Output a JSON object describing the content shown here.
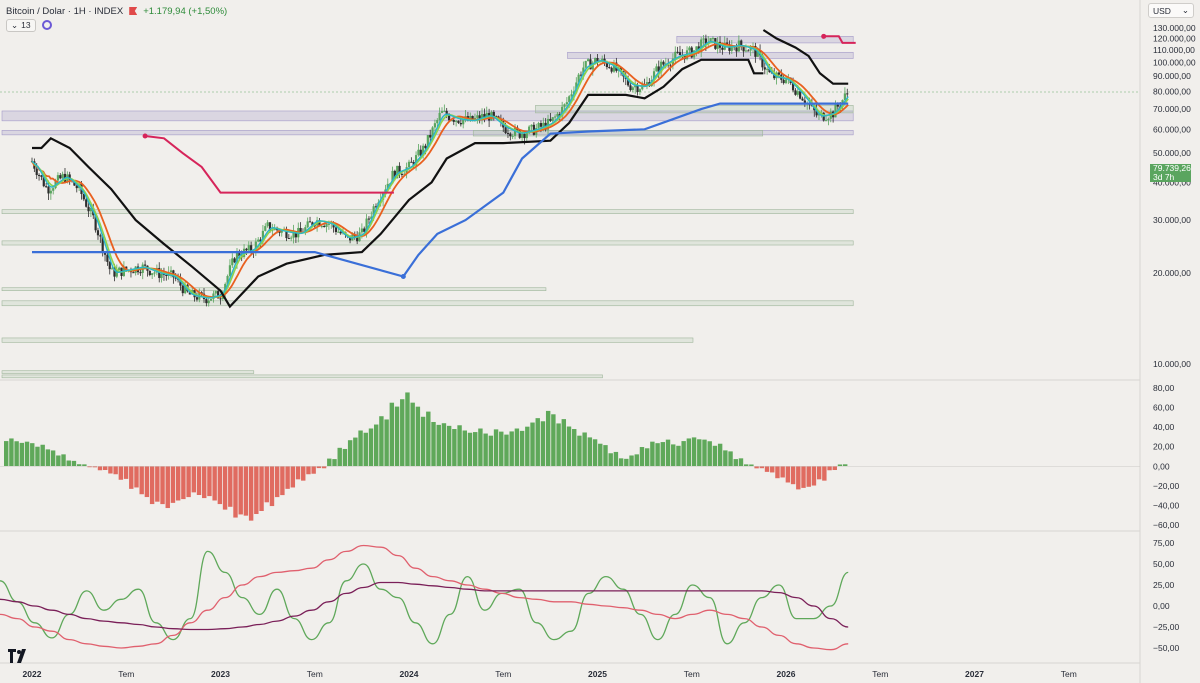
{
  "header": {
    "title": "Bitcoin / Dolar · 1H · INDEX",
    "change": "+1.179,94 (+1,50%)",
    "indicator_count": "13"
  },
  "currency": {
    "label": "USD"
  },
  "last_price": {
    "value": "79.739,26",
    "countdown": "3d 7h"
  },
  "colors": {
    "background": "#f1efec",
    "candle_up": "#5aa55f",
    "candle_down": "#2e2e2e",
    "supertrend": "#111111",
    "ema_fast": "#2bb5c9",
    "ema_green": "#8fd34a",
    "ema_slow": "#e9601f",
    "support_line": "#3a6fd8",
    "resistance_line": "#d6245a",
    "histogram_pos": "#5fa85a",
    "histogram_neg": "#e06b60",
    "osc_green": "#5fa85a",
    "osc_red": "#e0606e",
    "osc_purple": "#7a1f58"
  },
  "icons": [
    "flag-icon",
    "chevron-down-icon",
    "settings-icon",
    "tradingview-logo"
  ],
  "chart_data": [
    {
      "type": "candlestick",
      "title": "Bitcoin / Dolar · 1H · INDEX",
      "yscale": "log",
      "ylim": [
        7000,
        140000
      ],
      "yticks": [
        130000,
        120000,
        110000,
        100000,
        90000,
        80000,
        70000,
        60000,
        50000,
        40000,
        30000,
        20000,
        10000
      ],
      "ytick_labels": [
        "130.000,00",
        "120.000,00",
        "110.000,00",
        "100.000,00",
        "90.000,00",
        "80.000,00",
        "70.000,00",
        "60.000,00",
        "50.000,00",
        "40.000,00",
        "30.000,00",
        "20.000,00",
        "10.000,00"
      ],
      "last_value": 79739.26,
      "close_path": [
        [
          2022.0,
          47000
        ],
        [
          2022.08,
          38000
        ],
        [
          2022.17,
          42000
        ],
        [
          2022.25,
          38000
        ],
        [
          2022.33,
          30000
        ],
        [
          2022.42,
          20000
        ],
        [
          2022.5,
          20500
        ],
        [
          2022.58,
          21000
        ],
        [
          2022.67,
          20000
        ],
        [
          2022.75,
          19500
        ],
        [
          2022.83,
          17000
        ],
        [
          2022.92,
          16500
        ],
        [
          2023.0,
          17000
        ],
        [
          2023.08,
          23000
        ],
        [
          2023.17,
          24000
        ],
        [
          2023.25,
          28500
        ],
        [
          2023.33,
          27500
        ],
        [
          2023.42,
          27000
        ],
        [
          2023.5,
          30000
        ],
        [
          2023.58,
          29200
        ],
        [
          2023.67,
          26000
        ],
        [
          2023.75,
          27000
        ],
        [
          2023.83,
          35000
        ],
        [
          2023.92,
          43000
        ],
        [
          2024.0,
          45000
        ],
        [
          2024.08,
          52000
        ],
        [
          2024.17,
          68000
        ],
        [
          2024.25,
          65000
        ],
        [
          2024.33,
          64000
        ],
        [
          2024.42,
          67000
        ],
        [
          2024.5,
          61000
        ],
        [
          2024.58,
          58000
        ],
        [
          2024.67,
          60000
        ],
        [
          2024.75,
          63000
        ],
        [
          2024.83,
          72000
        ],
        [
          2024.92,
          96000
        ],
        [
          2025.0,
          102000
        ],
        [
          2025.08,
          97000
        ],
        [
          2025.17,
          84000
        ],
        [
          2025.25,
          83000
        ],
        [
          2025.33,
          97000
        ],
        [
          2025.42,
          105000
        ],
        [
          2025.5,
          108000
        ],
        [
          2025.58,
          118000
        ],
        [
          2025.67,
          112000
        ],
        [
          2025.75,
          114000
        ],
        [
          2025.83,
          110000
        ],
        [
          2025.92,
          90000
        ],
        [
          2026.0,
          88000
        ],
        [
          2026.08,
          78000
        ],
        [
          2026.17,
          66000
        ],
        [
          2026.25,
          68000
        ],
        [
          2026.33,
          79739
        ]
      ],
      "reference_lines": [
        {
          "name": "support",
          "points": [
            [
              2022.0,
              23500
            ],
            [
              2022.6,
              23500
            ],
            [
              2023.5,
              23500
            ]
          ]
        },
        {
          "name": "resistance",
          "points": [
            [
              2022.6,
              57000
            ],
            [
              2023.0,
              37000
            ],
            [
              2023.92,
              37000
            ]
          ]
        }
      ]
    },
    {
      "type": "bar",
      "ylim": [
        -60,
        80
      ],
      "yticks": [
        80,
        60,
        40,
        20,
        0,
        -20,
        -40,
        -60
      ],
      "ytick_labels": [
        "80,00",
        "60,00",
        "40,00",
        "20,00",
        "0,00",
        "−20,00",
        "−40,00",
        "−60,00"
      ],
      "series": [
        {
          "values": [
            28,
            26,
            24,
            21,
            17,
            12,
            6,
            2,
            -1,
            -4,
            -8,
            -14,
            -22,
            -30,
            -38,
            -42,
            -38,
            -32,
            -28,
            -32,
            -38,
            -45,
            -50,
            -53,
            -48,
            -40,
            -32,
            -22,
            -14,
            -8,
            -2,
            8,
            18,
            28,
            36,
            42,
            52,
            62,
            72,
            64,
            55,
            46,
            42,
            40,
            36,
            38,
            34,
            36,
            34,
            38,
            44,
            50,
            54,
            46,
            40,
            34,
            30,
            22,
            14,
            8,
            12,
            20,
            24,
            26,
            22,
            28,
            30,
            26,
            22,
            16,
            8,
            2,
            -2,
            -6,
            -12,
            -18,
            -24,
            -20,
            -14,
            -4,
            2
          ]
        }
      ],
      "x_range": [
        2022.0,
        2026.33
      ]
    },
    {
      "type": "line",
      "ylim": [
        -55,
        78
      ],
      "yticks": [
        75,
        50,
        25,
        0,
        -25,
        -50
      ],
      "ytick_labels": [
        "75,00",
        "50,00",
        "25,00",
        "0,00",
        "−25,00",
        "−50,00"
      ],
      "x_range": [
        2022.0,
        2026.33
      ],
      "series": [
        {
          "values": [
            30,
            5,
            -20,
            -38,
            -10,
            18,
            -5,
            8,
            20,
            -20,
            -40,
            -15,
            65,
            40,
            10,
            -10,
            20,
            -15,
            -40,
            -20,
            30,
            50,
            20,
            10,
            -20,
            -45,
            -10,
            35,
            -5,
            15,
            20,
            -20,
            -40,
            -30,
            15,
            35,
            20,
            -10,
            -40,
            -10,
            25,
            10,
            -45,
            -20,
            10,
            25,
            -15,
            -15,
            0,
            40
          ]
        },
        {
          "values": [
            -10,
            -15,
            -25,
            -30,
            -40,
            -45,
            -48,
            -50,
            -48,
            -45,
            -35,
            -20,
            -5,
            10,
            25,
            35,
            40,
            42,
            45,
            55,
            65,
            72,
            70,
            60,
            45,
            35,
            30,
            25,
            20,
            15,
            10,
            8,
            5,
            5,
            2,
            0,
            -2,
            -5,
            -10,
            -15,
            -10,
            -5,
            -10,
            -15,
            -25,
            -35,
            -45,
            -50,
            -52,
            -45
          ]
        },
        {
          "values": [
            8,
            5,
            0,
            -5,
            -10,
            -15,
            -18,
            -20,
            -22,
            -25,
            -27,
            -28,
            -28,
            -27,
            -25,
            -22,
            -18,
            -12,
            -5,
            5,
            15,
            22,
            28,
            28,
            26,
            24,
            22,
            20,
            18,
            18,
            18,
            18,
            18,
            18,
            18,
            18,
            18,
            18,
            18,
            18,
            18,
            18,
            18,
            18,
            18,
            16,
            10,
            0,
            -15,
            -25
          ]
        }
      ]
    }
  ],
  "xaxis": {
    "labels": [
      {
        "t": 2022.0,
        "text": "2022"
      },
      {
        "t": 2022.5,
        "text": "Tem"
      },
      {
        "t": 2023.0,
        "text": "2023"
      },
      {
        "t": 2023.5,
        "text": "Tem"
      },
      {
        "t": 2024.0,
        "text": "2024"
      },
      {
        "t": 2024.5,
        "text": "Tem"
      },
      {
        "t": 2025.0,
        "text": "2025"
      },
      {
        "t": 2025.5,
        "text": "Tem"
      },
      {
        "t": 2026.0,
        "text": "2026"
      },
      {
        "t": 2026.5,
        "text": "Tem"
      },
      {
        "t": 2027.0,
        "text": "2027"
      },
      {
        "t": 2027.5,
        "text": "Tem"
      }
    ]
  }
}
